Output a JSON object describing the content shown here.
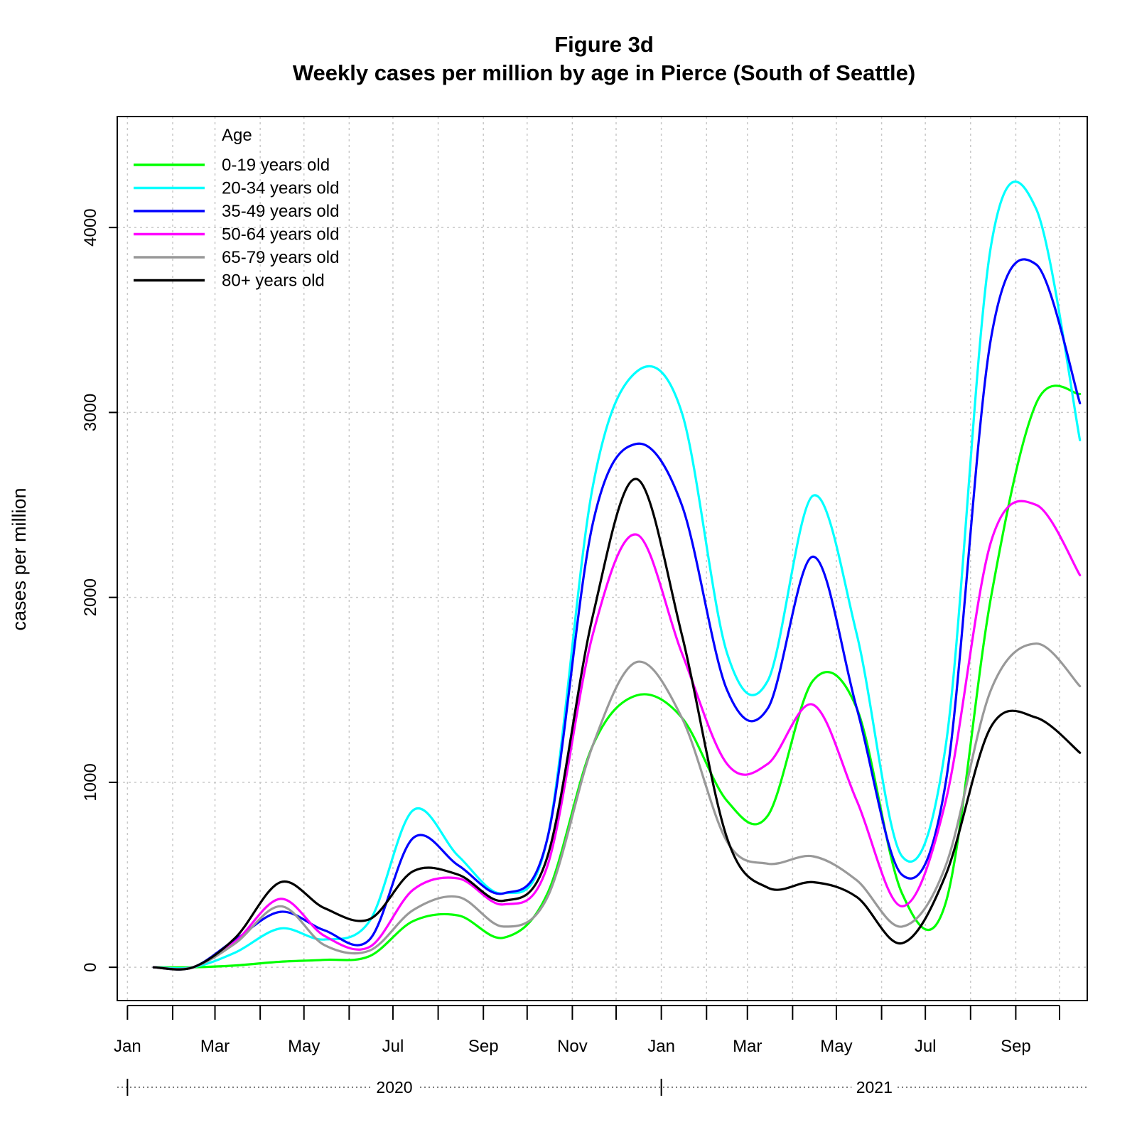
{
  "chart_data": {
    "type": "line",
    "title": "Figure 3d",
    "subtitle": "Weekly cases per million by age in Pierce (South of Seattle)",
    "xlabel": "",
    "ylabel": "cases per million",
    "ylim": [
      -180,
      4600
    ],
    "xlim": [
      "2019-12-25",
      "2021-10-20"
    ],
    "y_ticks": [
      0,
      1000,
      2000,
      3000,
      4000
    ],
    "y_tick_labels": [
      "0",
      "1000",
      "2000",
      "3000",
      "4000"
    ],
    "x_tick_labels": [
      "Jan",
      "Mar",
      "May",
      "Jul",
      "Sep",
      "Nov",
      "Jan",
      "Mar",
      "May",
      "Jul",
      "Sep"
    ],
    "x_label_dates": [
      "2020-01-01",
      "2020-03-01",
      "2020-05-01",
      "2020-07-01",
      "2020-09-01",
      "2020-11-01",
      "2021-01-01",
      "2021-03-01",
      "2021-05-01",
      "2021-07-01",
      "2021-09-01"
    ],
    "x_minor_ticks": [
      "2020-01-01",
      "2020-02-01",
      "2020-03-01",
      "2020-04-01",
      "2020-05-01",
      "2020-06-01",
      "2020-07-01",
      "2020-08-01",
      "2020-09-01",
      "2020-10-01",
      "2020-11-01",
      "2020-12-01",
      "2021-01-01",
      "2021-02-01",
      "2021-03-01",
      "2021-04-01",
      "2021-05-01",
      "2021-06-01",
      "2021-07-01",
      "2021-08-01",
      "2021-09-01",
      "2021-10-01"
    ],
    "year_labels": [
      {
        "label": "2020",
        "start": "2020-01-01",
        "end": "2021-01-01"
      },
      {
        "label": "2021",
        "start": "2021-01-01",
        "end": "2021-10-20"
      }
    ],
    "grid": true,
    "legend_title": "Age",
    "legend_position": "top-left",
    "x": [
      "2020-01-19",
      "2020-02-15",
      "2020-03-15",
      "2020-04-15",
      "2020-05-15",
      "2020-06-15",
      "2020-07-15",
      "2020-08-15",
      "2020-09-15",
      "2020-10-15",
      "2020-11-15",
      "2020-12-15",
      "2021-01-15",
      "2021-02-15",
      "2021-03-15",
      "2021-04-15",
      "2021-05-15",
      "2021-06-15",
      "2021-07-15",
      "2021-08-15",
      "2021-09-15",
      "2021-10-15"
    ],
    "series": [
      {
        "name": "0-19 years old",
        "color": "#00ff00",
        "values": [
          0,
          0,
          10,
          30,
          40,
          60,
          250,
          280,
          160,
          400,
          1200,
          1470,
          1350,
          900,
          820,
          1550,
          1400,
          400,
          350,
          2000,
          3050,
          3100
        ]
      },
      {
        "name": "20-34 years old",
        "color": "#00ffff",
        "values": [
          0,
          0,
          80,
          210,
          150,
          250,
          850,
          600,
          400,
          700,
          2600,
          3220,
          3000,
          1700,
          1550,
          2550,
          1800,
          600,
          1200,
          3900,
          4100,
          2850
        ]
      },
      {
        "name": "35-49 years old",
        "color": "#0000ff",
        "values": [
          0,
          0,
          150,
          300,
          200,
          150,
          700,
          550,
          400,
          700,
          2400,
          2830,
          2500,
          1500,
          1400,
          2220,
          1400,
          500,
          1000,
          3400,
          3800,
          3050
        ]
      },
      {
        "name": "50-64 years old",
        "color": "#ff00ff",
        "values": [
          0,
          0,
          140,
          370,
          170,
          110,
          420,
          480,
          340,
          550,
          1800,
          2340,
          1700,
          1100,
          1100,
          1420,
          900,
          330,
          900,
          2300,
          2500,
          2120
        ]
      },
      {
        "name": "65-79 years old",
        "color": "#999999",
        "values": [
          0,
          0,
          130,
          330,
          120,
          90,
          310,
          380,
          220,
          380,
          1200,
          1650,
          1350,
          680,
          560,
          600,
          470,
          220,
          550,
          1500,
          1750,
          1520
        ]
      },
      {
        "name": "80+ years old",
        "color": "#000000",
        "values": [
          0,
          0,
          160,
          460,
          320,
          260,
          520,
          500,
          360,
          600,
          1900,
          2640,
          1800,
          700,
          430,
          460,
          380,
          130,
          500,
          1300,
          1350,
          1160
        ]
      }
    ]
  }
}
